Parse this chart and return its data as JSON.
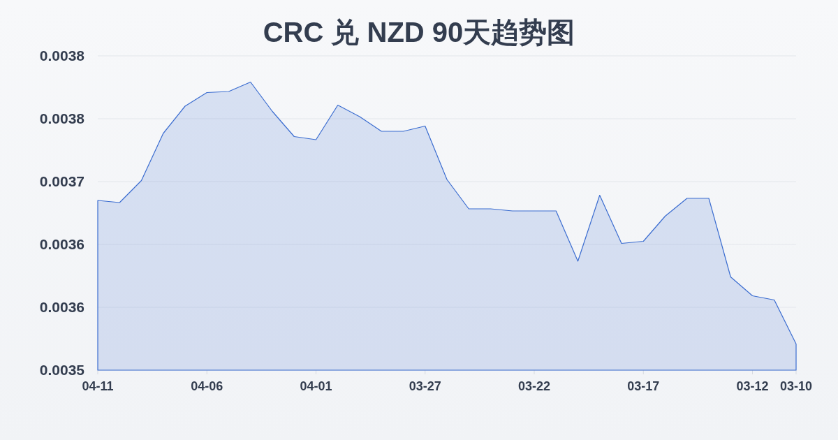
{
  "chart_data": {
    "type": "area",
    "title": "CRC 兑 NZD 90天趋势图",
    "categories": [
      "04-11",
      null,
      null,
      null,
      null,
      "04-06",
      null,
      null,
      null,
      null,
      "04-01",
      null,
      null,
      null,
      null,
      "03-27",
      null,
      null,
      null,
      null,
      "03-22",
      null,
      null,
      null,
      null,
      "03-17",
      null,
      null,
      null,
      null,
      "03-12",
      null,
      "03-10"
    ],
    "values": [
      0.003682,
      0.00368,
      0.003701,
      0.003746,
      0.003772,
      0.003785,
      0.003786,
      0.003795,
      0.003767,
      0.003743,
      0.00374,
      0.003773,
      0.003762,
      0.003748,
      0.003748,
      0.003753,
      0.003702,
      0.003674,
      0.003674,
      0.003672,
      0.003672,
      0.003672,
      0.003624,
      0.003687,
      0.003641,
      0.003643,
      0.003667,
      0.003684,
      0.003684,
      0.003609,
      0.003591,
      0.003587,
      0.003545
    ],
    "color": "#3a6cd0",
    "ylim": [
      0.00352,
      0.00382
    ],
    "yticks": [
      {
        "value": 0.00352,
        "label": "0.0035"
      },
      {
        "value": 0.00358,
        "label": "0.0036"
      },
      {
        "value": 0.00364,
        "label": "0.0036"
      },
      {
        "value": 0.0037,
        "label": "0.0037"
      },
      {
        "value": 0.00376,
        "label": "0.0038"
      },
      {
        "value": 0.00382,
        "label": "0.0038"
      }
    ],
    "grid": "y"
  }
}
